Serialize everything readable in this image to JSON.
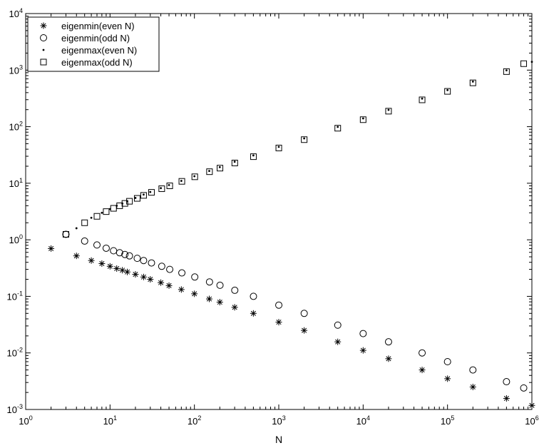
{
  "chart_data": {
    "type": "scatter",
    "title": "",
    "xlabel": "N",
    "ylabel": "",
    "xscale": "log",
    "yscale": "log",
    "xlim": [
      1,
      1000000
    ],
    "ylim": [
      0.001,
      10000
    ],
    "grid": false,
    "legend_position": "top-left",
    "x_tick_labels": [
      {
        "base": "10",
        "exp": "0"
      },
      {
        "base": "10",
        "exp": "1"
      },
      {
        "base": "10",
        "exp": "2"
      },
      {
        "base": "10",
        "exp": "3"
      },
      {
        "base": "10",
        "exp": "4"
      },
      {
        "base": "10",
        "exp": "5"
      },
      {
        "base": "10",
        "exp": "6"
      }
    ],
    "y_tick_labels": [
      {
        "base": "10",
        "exp": "-3"
      },
      {
        "base": "10",
        "exp": "-2"
      },
      {
        "base": "10",
        "exp": "-1"
      },
      {
        "base": "10",
        "exp": "0"
      },
      {
        "base": "10",
        "exp": "1"
      },
      {
        "base": "10",
        "exp": "2"
      },
      {
        "base": "10",
        "exp": "3"
      },
      {
        "base": "10",
        "exp": "4"
      }
    ],
    "series": [
      {
        "name": "eigenmin(even N)",
        "marker": "asterisk",
        "x": [
          2,
          4,
          6,
          8,
          10,
          12,
          14,
          16,
          20,
          25,
          30,
          40,
          50,
          70,
          100,
          150,
          200,
          300,
          500,
          1000,
          2000,
          5000,
          10000,
          20000,
          50000,
          100000,
          200000,
          500000,
          1000000
        ],
        "y": [
          0.7,
          0.52,
          0.43,
          0.38,
          0.34,
          0.31,
          0.29,
          0.27,
          0.245,
          0.22,
          0.2,
          0.175,
          0.155,
          0.132,
          0.111,
          0.09,
          0.079,
          0.064,
          0.05,
          0.035,
          0.025,
          0.0157,
          0.0111,
          0.0079,
          0.005,
          0.0035,
          0.0025,
          0.00157,
          0.00118
        ]
      },
      {
        "name": "eigenmin(odd N)",
        "marker": "circle",
        "x": [
          3,
          5,
          7,
          9,
          11,
          13,
          15,
          17,
          21,
          25,
          31,
          41,
          51,
          71,
          101,
          151,
          201,
          301,
          501,
          1001,
          2001,
          5001,
          10001,
          20001,
          50001,
          100001,
          200001,
          500001,
          800001
        ],
        "y": [
          1.25,
          0.95,
          0.81,
          0.71,
          0.64,
          0.59,
          0.55,
          0.52,
          0.47,
          0.43,
          0.39,
          0.34,
          0.3,
          0.26,
          0.22,
          0.18,
          0.157,
          0.128,
          0.1,
          0.07,
          0.05,
          0.031,
          0.022,
          0.0157,
          0.01,
          0.007,
          0.005,
          0.0031,
          0.0024
        ]
      },
      {
        "name": "eigenmax(even N)",
        "marker": "dot",
        "x": [
          4,
          6,
          8,
          10,
          12,
          14,
          16,
          20,
          25,
          30,
          40,
          50,
          70,
          100,
          150,
          200,
          300,
          500,
          1000,
          2000,
          5000,
          10000,
          20000,
          50000,
          100000,
          200000,
          500000,
          1000000
        ],
        "y": [
          1.6,
          2.45,
          3.0,
          3.5,
          4.0,
          4.4,
          4.8,
          5.5,
          6.3,
          7.0,
          8.2,
          9.3,
          11.0,
          13.3,
          16.5,
          19.3,
          24,
          31,
          44,
          62,
          99,
          140,
          198,
          313,
          443,
          626,
          990,
          1400
        ]
      },
      {
        "name": "eigenmax(odd N)",
        "marker": "square",
        "x": [
          3,
          5,
          7,
          9,
          11,
          13,
          15,
          17,
          21,
          25,
          31,
          41,
          51,
          71,
          101,
          151,
          201,
          301,
          501,
          1001,
          2001,
          5001,
          10001,
          20001,
          50001,
          100001,
          200001,
          500001,
          800001
        ],
        "y": [
          1.25,
          2.0,
          2.6,
          3.15,
          3.6,
          4.0,
          4.4,
          4.8,
          5.4,
          6.1,
          6.9,
          8.0,
          9.0,
          10.8,
          13,
          16,
          18.5,
          22.8,
          29.5,
          42,
          59,
          94,
          133,
          188,
          298,
          421,
          595,
          942,
          1300
        ]
      }
    ]
  }
}
